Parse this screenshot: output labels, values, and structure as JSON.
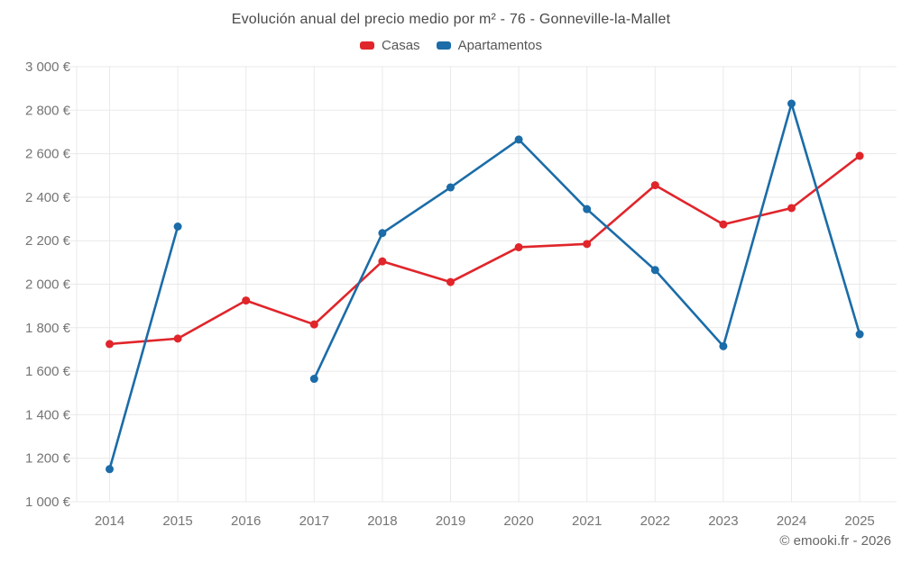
{
  "title": "Evolución anual del precio medio por m² - 76 - Gonneville-la-Mallet",
  "copyright": "© emooki.fr - 2026",
  "chart_data": {
    "type": "line",
    "title": "Evolución anual del precio medio por m² - 76 - Gonneville-la-Mallet",
    "x": [
      2014,
      2015,
      2016,
      2017,
      2018,
      2019,
      2020,
      2021,
      2022,
      2023,
      2024,
      2025
    ],
    "x_tick_labels": [
      "2014",
      "2015",
      "2016",
      "2017",
      "2018",
      "2019",
      "2020",
      "2021",
      "2022",
      "2023",
      "2024",
      "2025"
    ],
    "y_tick_labels": [
      "1 000 €",
      "1 200 €",
      "1 400 €",
      "1 600 €",
      "1 800 €",
      "2 000 €",
      "2 200 €",
      "2 400 €",
      "2 600 €",
      "2 800 €",
      "3 000 €"
    ],
    "ylim": [
      1000,
      3000
    ],
    "y_step": 200,
    "grid": true,
    "legend_position": "top",
    "ylabel": "",
    "xlabel": "",
    "series": [
      {
        "name": "Casas",
        "color": "#e0252b",
        "values": [
          1725,
          1750,
          1925,
          1815,
          2105,
          2010,
          2170,
          2185,
          2455,
          2275,
          2350,
          2590
        ]
      },
      {
        "name": "Apartamentos",
        "color": "#1b6ca8",
        "values": [
          1150,
          2265,
          null,
          1565,
          2235,
          2445,
          2665,
          2345,
          2065,
          1715,
          2830,
          1770
        ]
      }
    ],
    "colors": {
      "grid": "#e9e9e9",
      "axis_text": "#757575"
    }
  }
}
